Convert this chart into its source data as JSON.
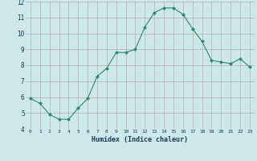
{
  "x": [
    0,
    1,
    2,
    3,
    4,
    5,
    6,
    7,
    8,
    9,
    10,
    11,
    12,
    13,
    14,
    15,
    16,
    17,
    18,
    19,
    20,
    21,
    22,
    23
  ],
  "y": [
    5.9,
    5.6,
    4.9,
    4.6,
    4.6,
    5.3,
    5.9,
    7.3,
    7.8,
    8.8,
    8.8,
    9.0,
    10.4,
    11.3,
    11.6,
    11.6,
    11.2,
    10.3,
    9.5,
    8.3,
    8.2,
    8.1,
    8.4,
    7.9
  ],
  "xlabel": "Humidex (Indice chaleur)",
  "xlim": [
    -0.5,
    23.5
  ],
  "ylim": [
    4,
    12
  ],
  "yticks": [
    4,
    5,
    6,
    7,
    8,
    9,
    10,
    11,
    12
  ],
  "xticks": [
    0,
    1,
    2,
    3,
    4,
    5,
    6,
    7,
    8,
    9,
    10,
    11,
    12,
    13,
    14,
    15,
    16,
    17,
    18,
    19,
    20,
    21,
    22,
    23
  ],
  "line_color": "#2e8b6e",
  "marker_color": "#2e8b6e",
  "bg_color": "#cce8e8",
  "grid_color": "#b8a0a0",
  "font_color": "#1a3a5c"
}
